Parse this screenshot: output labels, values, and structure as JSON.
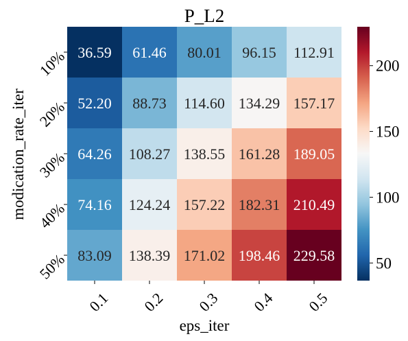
{
  "chart_data": {
    "type": "heatmap",
    "title": "P_L2",
    "xlabel": "eps_iter",
    "ylabel": "modication_rate_iter",
    "x_categories": [
      "0.1",
      "0.2",
      "0.3",
      "0.4",
      "0.5"
    ],
    "y_categories": [
      "10%",
      "20%",
      "30%",
      "40%",
      "50%"
    ],
    "values": [
      [
        36.59,
        61.46,
        80.01,
        96.15,
        112.91
      ],
      [
        52.2,
        88.73,
        114.6,
        134.29,
        157.17
      ],
      [
        64.26,
        108.27,
        138.55,
        161.28,
        189.05
      ],
      [
        74.16,
        124.24,
        157.22,
        182.31,
        210.49
      ],
      [
        83.09,
        138.39,
        171.02,
        198.46,
        229.58
      ]
    ],
    "value_labels": [
      [
        "36.59",
        "61.46",
        "80.01",
        "96.15",
        "112.91"
      ],
      [
        "52.20",
        "88.73",
        "114.60",
        "134.29",
        "157.17"
      ],
      [
        "64.26",
        "108.27",
        "138.55",
        "161.28",
        "189.05"
      ],
      [
        "74.16",
        "124.24",
        "157.22",
        "182.31",
        "210.49"
      ],
      [
        "83.09",
        "138.39",
        "171.02",
        "198.46",
        "229.58"
      ]
    ],
    "colormap": "RdBu_r",
    "vmin": 36.59,
    "vmax": 229.58,
    "colorbar_ticks": [
      "50",
      "100",
      "150",
      "200"
    ],
    "colorbar_tick_values": [
      50,
      100,
      150,
      200
    ]
  }
}
